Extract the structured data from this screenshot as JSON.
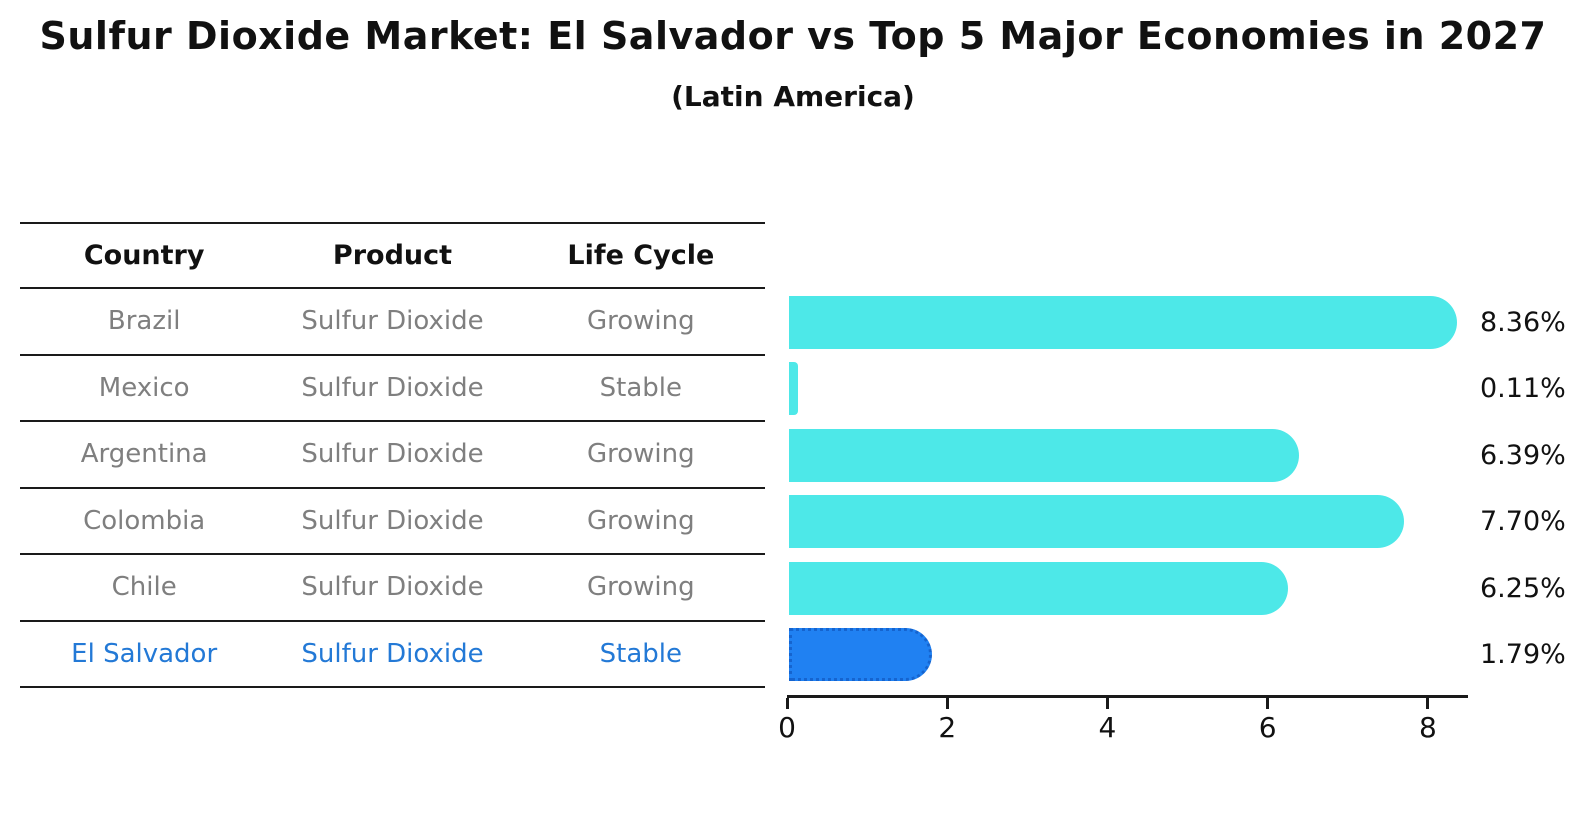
{
  "title": "Sulfur Dioxide Market: El Salvador vs Top 5 Major Economies in 2027",
  "subtitle": "(Latin America)",
  "table": {
    "headers": [
      "Country",
      "Product",
      "Life Cycle"
    ],
    "rows": [
      {
        "country": "Brazil",
        "product": "Sulfur Dioxide",
        "life_cycle": "Growing",
        "highlight": false
      },
      {
        "country": "Mexico",
        "product": "Sulfur Dioxide",
        "life_cycle": "Stable",
        "highlight": false
      },
      {
        "country": "Argentina",
        "product": "Sulfur Dioxide",
        "life_cycle": "Growing",
        "highlight": false
      },
      {
        "country": "Colombia",
        "product": "Sulfur Dioxide",
        "life_cycle": "Growing",
        "highlight": false
      },
      {
        "country": "Chile",
        "product": "Sulfur Dioxide",
        "life_cycle": "Growing",
        "highlight": false
      },
      {
        "country": "El Salvador",
        "product": "Sulfur Dioxide",
        "life_cycle": "Stable",
        "highlight": true
      }
    ]
  },
  "chart_data": {
    "type": "bar",
    "orientation": "horizontal",
    "title": "Sulfur Dioxide Market: El Salvador vs Top 5 Major Economies in 2027 (Latin America)",
    "categories": [
      "Brazil",
      "Mexico",
      "Argentina",
      "Colombia",
      "Chile",
      "El Salvador"
    ],
    "values": [
      8.36,
      0.11,
      6.39,
      7.7,
      6.25,
      1.79
    ],
    "value_labels": [
      "8.36%",
      "0.11%",
      "6.39%",
      "7.70%",
      "6.25%",
      "1.79%"
    ],
    "xlabel": "",
    "ylabel": "",
    "xlim": [
      0,
      8.5
    ],
    "x_ticks": [
      0,
      2,
      4,
      6,
      8
    ],
    "x_tick_labels": [
      "0",
      "2",
      "4",
      "6",
      "8"
    ],
    "grid": false,
    "legend": "none",
    "bar_color": "#4de8e8",
    "highlight_bar_color": "#2081f2",
    "highlight_index": 5,
    "highlight_text_color": "#2379d6"
  }
}
